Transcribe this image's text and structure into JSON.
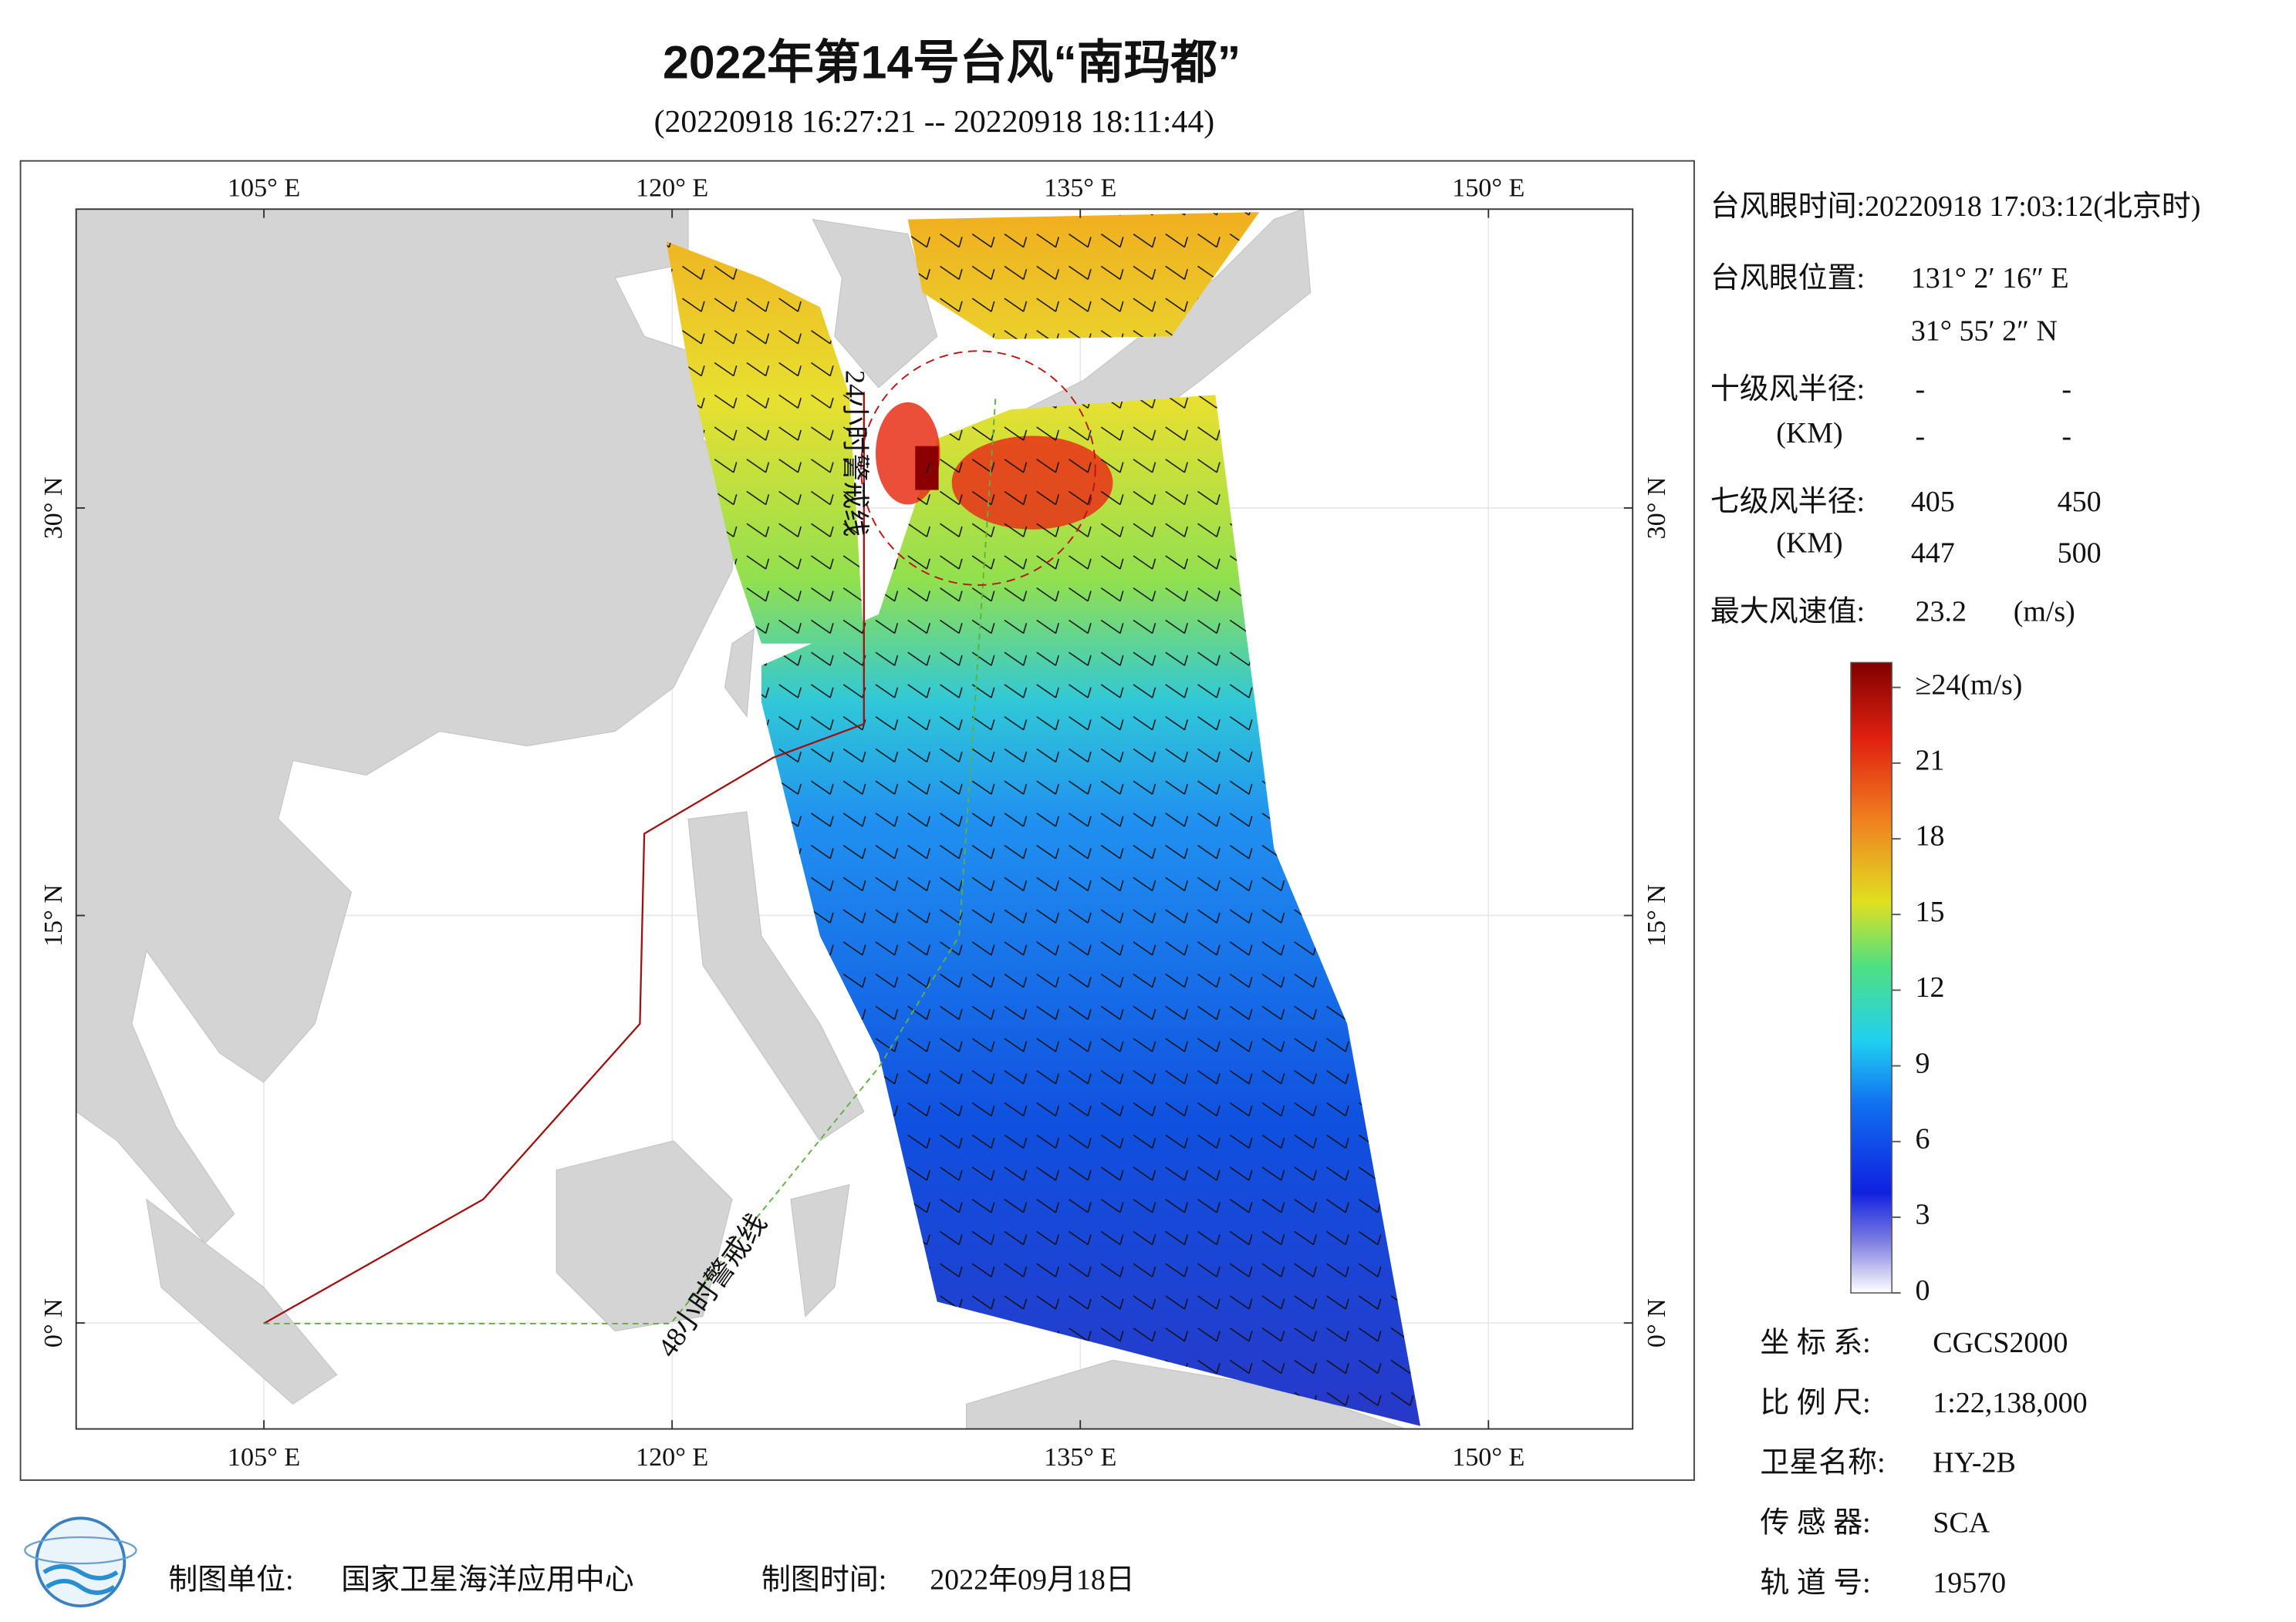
{
  "header": {
    "title": "2022年第14号台风“南玛都”",
    "subtitle": "(20220918 16:27:21 -- 20220918 18:11:44)"
  },
  "map": {
    "lon_range": [
      98.1,
      155.3
    ],
    "lat_range": [
      -3.9,
      41.0
    ],
    "lon_ticks": [
      {
        "value": 105,
        "label": "105° E"
      },
      {
        "value": 120,
        "label": "120° E"
      },
      {
        "value": 135,
        "label": "135° E"
      },
      {
        "value": 150,
        "label": "150° E"
      }
    ],
    "lat_ticks": [
      {
        "value": 0,
        "label": "0° N"
      },
      {
        "value": 15,
        "label": "15° N"
      },
      {
        "value": 30,
        "label": "30° N"
      }
    ],
    "warning_lines": [
      "24小时警戒线",
      "48小时警戒线"
    ]
  },
  "info": {
    "eye_time": "台风眼时间:20220918 17:03:12(北京时)",
    "eye_position": {
      "label": "台风眼位置:",
      "lon": "131° 2′ 16″ E",
      "lat": "31° 55′ 2″ N"
    },
    "radius_10": {
      "label": "十级风半径:",
      "unit": "(KM)",
      "values": [
        "-",
        "-",
        "-",
        "-"
      ]
    },
    "radius_7": {
      "label": "七级风半径:",
      "unit": "(KM)",
      "values": [
        405,
        450,
        447,
        500
      ]
    },
    "max_wind": {
      "label": "最大风速值:",
      "value": 23.2,
      "unit": "(m/s)"
    }
  },
  "colorbar": {
    "range": [
      0,
      24
    ],
    "ticks": [
      0,
      3,
      6,
      9,
      12,
      15,
      18,
      21,
      {
        "value": 24,
        "label": "≥24(m/s)"
      }
    ]
  },
  "meta": [
    {
      "label": "坐 标 系:",
      "value": "CGCS2000"
    },
    {
      "label": "比 例 尺:",
      "value": "1:22,138,000"
    },
    {
      "label": "卫星名称:",
      "value": "HY-2B"
    },
    {
      "label": "传 感 器:",
      "value": "SCA"
    },
    {
      "label": "轨 道 号:",
      "value": "19570"
    }
  ],
  "footer": {
    "unit_label": "制图单位:",
    "unit": "国家卫星海洋应用中心",
    "time_label": "制图时间:",
    "time": "2022年09月18日"
  }
}
